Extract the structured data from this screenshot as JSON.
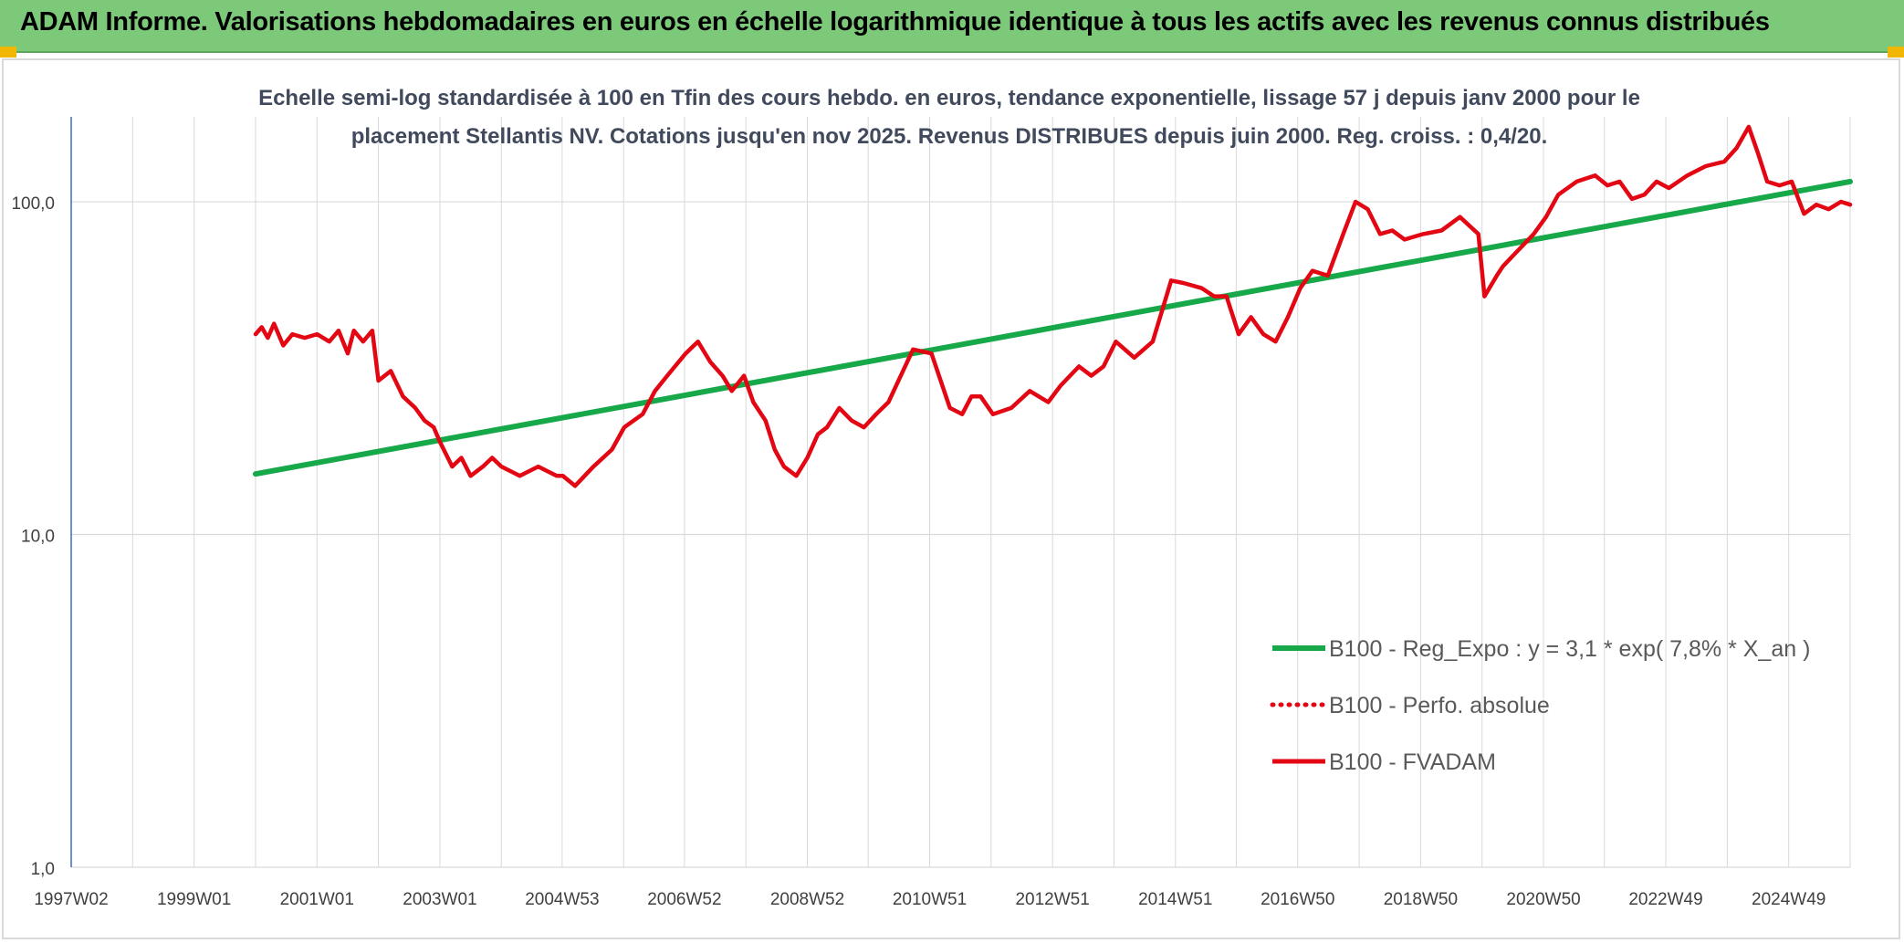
{
  "header": {
    "title": "ADAM Informe. Valorisations hebdomadaires en euros en échelle logarithmique identique à tous les actifs avec les revenus connus distribués"
  },
  "colors": {
    "banner": "#7dc97a",
    "regression": "#17a84a",
    "fvadam": "#e30613",
    "perfo": "#e30613",
    "grid": "#d9d9d9",
    "axis": "#3b6fb6",
    "title_text": "#404a5c"
  },
  "chart_data": {
    "type": "line",
    "title_line1": "Echelle semi-log standardisée à 100 en Tfin des cours hebdo. en euros, tendance exponentielle, lissage 57 j depuis janv 2000 pour le",
    "title_line2": "placement Stellantis NV. Cotations jusqu'en nov 2025. Revenus DISTRIBUES depuis juin 2000. Reg. croiss. : 0,4/20.",
    "y_scale": "log",
    "ylim": [
      1,
      180
    ],
    "y_ticks": [
      1,
      10,
      100
    ],
    "y_tick_labels": [
      "1,0",
      "10,0",
      "100,0"
    ],
    "xlim": [
      1997.0,
      2025.95
    ],
    "x_tick_labels": [
      "1997W02",
      "1999W01",
      "2001W01",
      "2003W01",
      "2004W53",
      "2006W52",
      "2008W52",
      "2010W51",
      "2012W51",
      "2014W51",
      "2016W50",
      "2018W50",
      "2020W50",
      "2022W49",
      "2024W49"
    ],
    "x_tick_years": [
      1997.0,
      1999.0,
      2001.0,
      2003.0,
      2004.99,
      2006.98,
      2008.98,
      2010.97,
      2012.97,
      2014.97,
      2016.96,
      2018.96,
      2020.96,
      2022.95,
      2024.95
    ],
    "x_grid_years": [
      1997.0,
      1998.0,
      1999.0,
      2000.0,
      2001.0,
      2002.0,
      2003.0,
      2004.0,
      2004.99,
      2005.99,
      2006.98,
      2007.98,
      2008.98,
      2009.97,
      2010.97,
      2011.97,
      2012.97,
      2013.97,
      2014.97,
      2015.96,
      2016.96,
      2017.96,
      2018.96,
      2019.96,
      2020.96,
      2021.95,
      2022.95,
      2023.95,
      2024.95,
      2025.95
    ],
    "grid": true,
    "legend_position": "right",
    "series": [
      {
        "name": "B100 - Reg_Expo : y = 3,1 * exp( 7,8% *  X_an )",
        "style": "solid",
        "color": "#17a84a",
        "x": [
          2000.0,
          2025.95
        ],
        "y": [
          15.2,
          115
        ]
      },
      {
        "name": "B100 - Perfo. absolue",
        "style": "dotted",
        "color": "#e30613",
        "x": [],
        "y": []
      },
      {
        "name": "B100 - FVADAM",
        "style": "solid",
        "color": "#e30613",
        "x": [
          2000.0,
          2000.1,
          2000.2,
          2000.3,
          2000.45,
          2000.6,
          2000.8,
          2001.0,
          2001.2,
          2001.35,
          2001.5,
          2001.6,
          2001.75,
          2001.9,
          2002.0,
          2002.2,
          2002.4,
          2002.6,
          2002.75,
          2002.9,
          2003.0,
          2003.2,
          2003.35,
          2003.5,
          2003.7,
          2003.85,
          2004.0,
          2004.3,
          2004.6,
          2004.9,
          2005.0,
          2005.2,
          2005.5,
          2005.8,
          2006.0,
          2006.3,
          2006.5,
          2006.7,
          2007.0,
          2007.2,
          2007.4,
          2007.6,
          2007.75,
          2007.95,
          2008.1,
          2008.3,
          2008.45,
          2008.6,
          2008.8,
          2008.98,
          2009.15,
          2009.3,
          2009.5,
          2009.7,
          2009.9,
          2010.1,
          2010.3,
          2010.5,
          2010.7,
          2011.0,
          2011.3,
          2011.5,
          2011.65,
          2011.8,
          2012.0,
          2012.3,
          2012.6,
          2012.9,
          2013.1,
          2013.4,
          2013.6,
          2013.8,
          2014.0,
          2014.3,
          2014.6,
          2014.9,
          2015.1,
          2015.4,
          2015.6,
          2015.8,
          2016.0,
          2016.2,
          2016.4,
          2016.6,
          2016.8,
          2017.0,
          2017.2,
          2017.45,
          2017.7,
          2017.9,
          2018.1,
          2018.3,
          2018.5,
          2018.7,
          2019.0,
          2019.3,
          2019.6,
          2019.9,
          2020.0,
          2020.2,
          2020.3,
          2020.5,
          2020.8,
          2021.0,
          2021.2,
          2021.5,
          2021.8,
          2022.0,
          2022.2,
          2022.4,
          2022.6,
          2022.8,
          2023.0,
          2023.3,
          2023.6,
          2023.9,
          2024.1,
          2024.3,
          2024.45,
          2024.6,
          2024.8,
          2025.0,
          2025.2,
          2025.4,
          2025.6,
          2025.8,
          2025.95
        ],
        "y": [
          40,
          42,
          39,
          43,
          37,
          40,
          39,
          40,
          38,
          41,
          35,
          41,
          38,
          41,
          29,
          31,
          26,
          24,
          22,
          21,
          19,
          16,
          17,
          15,
          16,
          17,
          16,
          15,
          16,
          15,
          15,
          14,
          16,
          18,
          21,
          23,
          27,
          30,
          35,
          38,
          33,
          30,
          27,
          30,
          25,
          22,
          18,
          16,
          15,
          17,
          20,
          21,
          24,
          22,
          21,
          23,
          25,
          30,
          36,
          35,
          24,
          23,
          26,
          26,
          23,
          24,
          27,
          25,
          28,
          32,
          30,
          32,
          38,
          34,
          38,
          58,
          57,
          55,
          52,
          52,
          40,
          45,
          40,
          38,
          45,
          55,
          62,
          60,
          80,
          100,
          95,
          80,
          82,
          77,
          80,
          82,
          90,
          80,
          52,
          60,
          64,
          70,
          80,
          90,
          105,
          115,
          120,
          112,
          115,
          102,
          105,
          115,
          110,
          120,
          128,
          132,
          145,
          168,
          140,
          115,
          112,
          115,
          92,
          98,
          95,
          100,
          98
        ]
      }
    ]
  }
}
